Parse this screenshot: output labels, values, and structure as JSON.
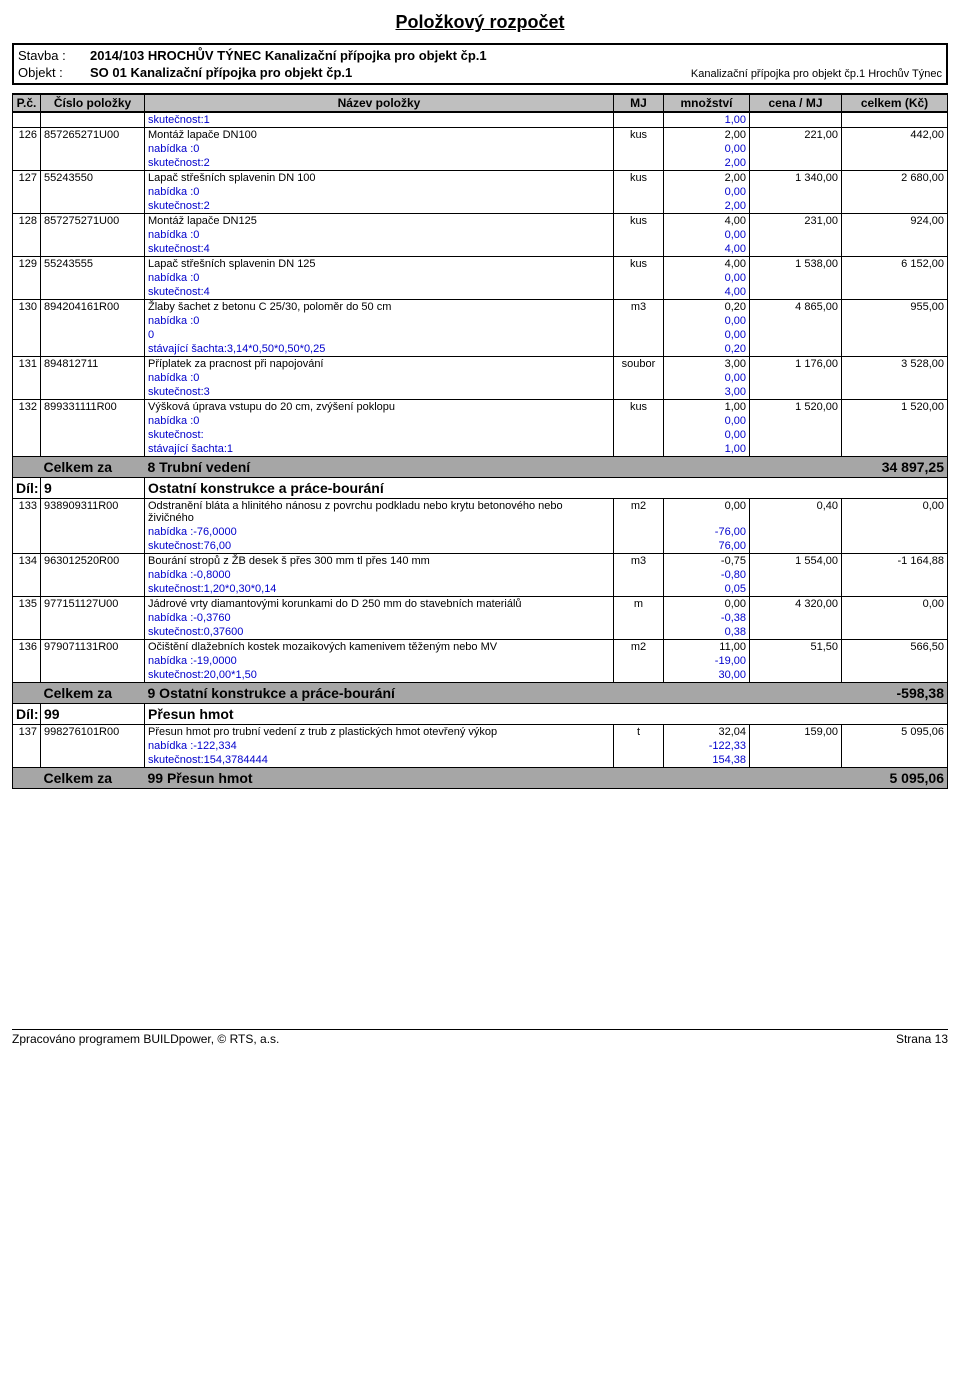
{
  "title": "Položkový rozpočet",
  "header": {
    "stavba_label": "Stavba :",
    "stavba_value": "2014/103 HROCHŮV TÝNEC Kanalizační přípojka pro objekt čp.1",
    "objekt_label": "Objekt :",
    "objekt_value": "SO 01 Kanalizační přípojka pro objekt čp.1",
    "objekt_note": "Kanalizační přípojka pro objekt čp.1 Hrochův Týnec"
  },
  "th": {
    "pc": "P.č.",
    "code": "Číslo položky",
    "name": "Název položky",
    "mj": "MJ",
    "qty": "množství",
    "unit": "cena / MJ",
    "total": "celkem (Kč)"
  },
  "rows": [
    {
      "type": "sub",
      "name": "skutečnost:1",
      "qty": "1,00"
    },
    {
      "type": "item",
      "pc": "126",
      "code": "857265271U00",
      "name": "Montáž lapače DN100",
      "mj": "kus",
      "qty": "2,00",
      "unit": "221,00",
      "total": "442,00"
    },
    {
      "type": "sub",
      "name": "nabídka :0",
      "qty": "0,00"
    },
    {
      "type": "sub",
      "name": "skutečnost:2",
      "qty": "2,00"
    },
    {
      "type": "item",
      "pc": "127",
      "code": "55243550",
      "name": "Lapač střešních splavenin DN 100",
      "mj": "kus",
      "qty": "2,00",
      "unit": "1 340,00",
      "total": "2 680,00"
    },
    {
      "type": "sub",
      "name": "nabídka :0",
      "qty": "0,00"
    },
    {
      "type": "sub",
      "name": "skutečnost:2",
      "qty": "2,00"
    },
    {
      "type": "item",
      "pc": "128",
      "code": "857275271U00",
      "name": "Montáž lapače DN125",
      "mj": "kus",
      "qty": "4,00",
      "unit": "231,00",
      "total": "924,00"
    },
    {
      "type": "sub",
      "name": "nabídka :0",
      "qty": "0,00"
    },
    {
      "type": "sub",
      "name": "skutečnost:4",
      "qty": "4,00"
    },
    {
      "type": "item",
      "pc": "129",
      "code": "55243555",
      "name": "Lapač střešních splavenin DN 125",
      "mj": "kus",
      "qty": "4,00",
      "unit": "1 538,00",
      "total": "6 152,00"
    },
    {
      "type": "sub",
      "name": "nabídka :0",
      "qty": "0,00"
    },
    {
      "type": "sub",
      "name": "skutečnost:4",
      "qty": "4,00"
    },
    {
      "type": "item",
      "pc": "130",
      "code": "894204161R00",
      "name": "Žlaby šachet z betonu C 25/30, poloměr do 50 cm",
      "mj": "m3",
      "qty": "0,20",
      "unit": "4 865,00",
      "total": "955,00"
    },
    {
      "type": "sub",
      "name": "nabídka :0",
      "qty": "0,00"
    },
    {
      "type": "sub",
      "name": "0",
      "qty": "0,00"
    },
    {
      "type": "sub",
      "name": "stávající šachta:3,14*0,50*0,50*0,25",
      "qty": "0,20"
    },
    {
      "type": "item",
      "pc": "131",
      "code": "894812711",
      "name": "Příplatek za pracnost při napojování",
      "mj": "soubor",
      "qty": "3,00",
      "unit": "1 176,00",
      "total": "3 528,00"
    },
    {
      "type": "sub",
      "name": "nabídka :0",
      "qty": "0,00"
    },
    {
      "type": "sub",
      "name": "skutečnost:3",
      "qty": "3,00"
    },
    {
      "type": "item",
      "pc": "132",
      "code": "899331111R00",
      "name": "Výšková úprava vstupu do 20 cm, zvýšení poklopu",
      "mj": "kus",
      "qty": "1,00",
      "unit": "1 520,00",
      "total": "1 520,00"
    },
    {
      "type": "sub",
      "name": "nabídka :0",
      "qty": "0,00"
    },
    {
      "type": "sub",
      "name": "skutečnost:",
      "qty": "0,00"
    },
    {
      "type": "sub",
      "name": "stávající šachta:1",
      "qty": "1,00"
    },
    {
      "type": "sect",
      "code": "Celkem za",
      "name": "8  Trubní vedení",
      "total": "34 897,25"
    },
    {
      "type": "dil",
      "pc": "Díl:",
      "code": "9",
      "name": "Ostatní konstrukce a práce-bourání"
    },
    {
      "type": "item",
      "pc": "133",
      "code": "938909311R00",
      "name": "Odstranění bláta a hlinitého nánosu z povrchu podkladu nebo krytu betonového nebo živičného",
      "mj": "m2",
      "qty": "0,00",
      "unit": "0,40",
      "total": "0,00"
    },
    {
      "type": "sub",
      "name": "nabídka :-76,0000",
      "qty": "-76,00"
    },
    {
      "type": "sub",
      "name": "skutečnost:76,00",
      "qty": "76,00"
    },
    {
      "type": "item",
      "pc": "134",
      "code": "963012520R00",
      "name": "Bourání stropů z ŽB desek š přes 300 mm tl přes 140 mm",
      "mj": "m3",
      "qty": "-0,75",
      "unit": "1 554,00",
      "total": "-1 164,88"
    },
    {
      "type": "sub",
      "name": "nabídka :-0,8000",
      "qty": "-0,80"
    },
    {
      "type": "sub",
      "name": "skutečnost:1,20*0,30*0,14",
      "qty": "0,05"
    },
    {
      "type": "item",
      "pc": "135",
      "code": "977151127U00",
      "name": "Jádrové vrty diamantovými korunkami do D 250 mm do stavebních materiálů",
      "mj": "m",
      "qty": "0,00",
      "unit": "4 320,00",
      "total": "0,00"
    },
    {
      "type": "sub",
      "name": "nabídka :-0,3760",
      "qty": "-0,38"
    },
    {
      "type": "sub",
      "name": "skutečnost:0,37600",
      "qty": "0,38"
    },
    {
      "type": "item",
      "pc": "136",
      "code": "979071131R00",
      "name": "Očištění dlažebních kostek mozaikových kamenivem těženým nebo MV",
      "mj": "m2",
      "qty": "11,00",
      "unit": "51,50",
      "total": "566,50"
    },
    {
      "type": "sub",
      "name": "nabídka :-19,0000",
      "qty": "-19,00"
    },
    {
      "type": "sub",
      "name": "skutečnost:20,00*1,50",
      "qty": "30,00"
    },
    {
      "type": "sect",
      "code": "Celkem za",
      "name": "9  Ostatní konstrukce a práce-bourání",
      "total": "-598,38"
    },
    {
      "type": "dil",
      "pc": "Díl:",
      "code": "99",
      "name": "Přesun hmot"
    },
    {
      "type": "item",
      "pc": "137",
      "code": "998276101R00",
      "name": "Přesun hmot pro trubní vedení z trub z plastických hmot otevřený výkop",
      "mj": "t",
      "qty": "32,04",
      "unit": "159,00",
      "total": "5 095,06"
    },
    {
      "type": "sub",
      "name": "nabídka :-122,334",
      "qty": "-122,33"
    },
    {
      "type": "sub",
      "name": "skutečnost:154,3784444",
      "qty": "154,38"
    },
    {
      "type": "sect",
      "code": "Celkem za",
      "name": "99  Přesun hmot",
      "total": "5 095,06"
    }
  ],
  "footer": {
    "left": "Zpracováno programem BUILDpower,  © RTS, a.s.",
    "right": "Strana 13"
  }
}
